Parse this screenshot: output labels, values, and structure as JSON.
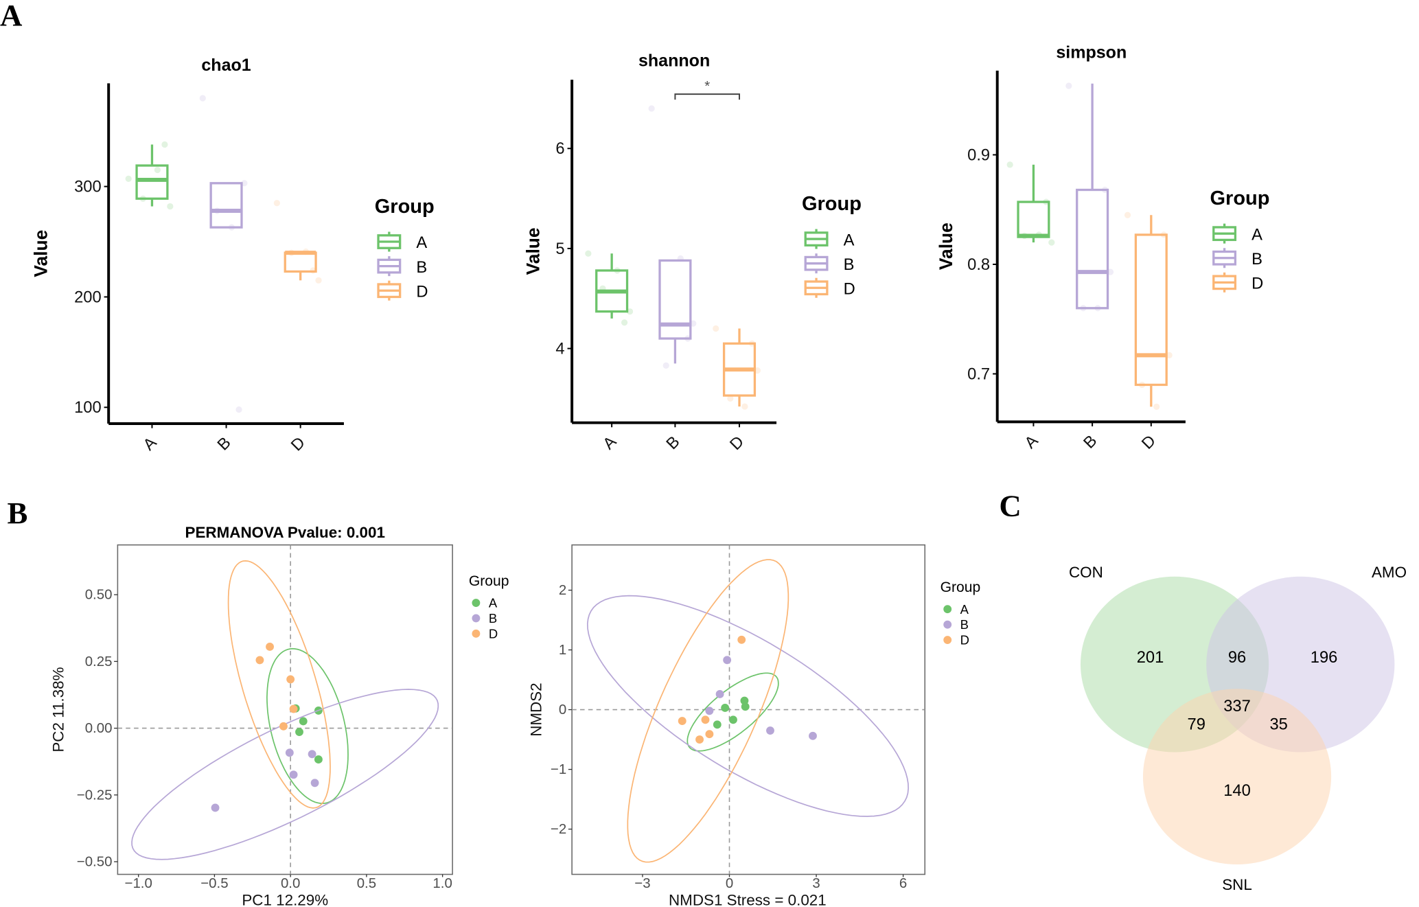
{
  "panel_labels": {
    "a": "A",
    "b": "B",
    "c": "C"
  },
  "colors": {
    "A": "#6cc36a",
    "B": "#b6a6d6",
    "D": "#fbb574"
  },
  "chart_data": [
    {
      "type": "box",
      "id": "chao1",
      "title": "chao1",
      "ylabel": "Value",
      "yticks": [
        100,
        200,
        300
      ],
      "ytick_labels": [
        "100",
        "200",
        "300"
      ],
      "categories": [
        "A",
        "B",
        "D"
      ],
      "legend_title": "Group",
      "legend_placement": "right",
      "groups": [
        {
          "name": "A",
          "whisker_low": 282,
          "q1": 289,
          "median": 306,
          "q3": 319,
          "whisker_high": 338,
          "points": [
            307,
            338,
            282,
            289,
            315
          ]
        },
        {
          "name": "B",
          "whisker_low": 263,
          "q1": 263,
          "median": 278,
          "q3": 303,
          "whisker_high": 303,
          "points": [
            380,
            98,
            303,
            278,
            263
          ]
        },
        {
          "name": "D",
          "whisker_low": 215,
          "q1": 223,
          "median": 240,
          "q3": 240,
          "whisker_high": 240,
          "points": [
            285,
            224,
            215,
            240,
            241
          ]
        }
      ]
    },
    {
      "type": "box",
      "id": "shannon",
      "title": "shannon",
      "ylabel": "Value",
      "yticks": [
        4,
        5,
        6
      ],
      "ytick_labels": [
        "4",
        "5",
        "6"
      ],
      "categories": [
        "A",
        "B",
        "D"
      ],
      "legend_title": "Group",
      "legend_placement": "right",
      "significance": {
        "from": "B",
        "to": "D",
        "label": "*"
      },
      "groups": [
        {
          "name": "A",
          "whisker_low": 4.3,
          "q1": 4.37,
          "median": 4.57,
          "q3": 4.78,
          "whisker_high": 4.95,
          "points": [
            4.95,
            4.26,
            4.37,
            4.6,
            4.78
          ]
        },
        {
          "name": "B",
          "whisker_low": 3.85,
          "q1": 4.1,
          "median": 4.24,
          "q3": 4.88,
          "whisker_high": 4.88,
          "points": [
            6.4,
            4.1,
            4.25,
            3.83,
            4.9
          ]
        },
        {
          "name": "D",
          "whisker_low": 3.42,
          "q1": 3.53,
          "median": 3.79,
          "q3": 4.05,
          "whisker_high": 4.2,
          "points": [
            4.2,
            4.05,
            3.78,
            3.5,
            3.42
          ]
        }
      ]
    },
    {
      "type": "box",
      "id": "simpson",
      "title": "simpson",
      "ylabel": "Value",
      "yticks": [
        0.7,
        0.8,
        0.9
      ],
      "ytick_labels": [
        "0.7",
        "0.8",
        "0.9"
      ],
      "categories": [
        "A",
        "B",
        "D"
      ],
      "legend_title": "Group",
      "legend_placement": "right",
      "groups": [
        {
          "name": "A",
          "whisker_low": 0.82,
          "q1": 0.825,
          "median": 0.826,
          "q3": 0.857,
          "whisker_high": 0.891,
          "points": [
            0.891,
            0.857,
            0.82,
            0.826,
            0.827
          ]
        },
        {
          "name": "B",
          "whisker_low": 0.76,
          "q1": 0.76,
          "median": 0.793,
          "q3": 0.868,
          "whisker_high": 0.965,
          "points": [
            0.963,
            0.868,
            0.793,
            0.76,
            0.76
          ]
        },
        {
          "name": "D",
          "whisker_low": 0.67,
          "q1": 0.69,
          "median": 0.717,
          "q3": 0.827,
          "whisker_high": 0.845,
          "points": [
            0.845,
            0.827,
            0.717,
            0.69,
            0.67
          ]
        }
      ]
    },
    {
      "type": "scatter",
      "id": "pcoa",
      "title": "PERMANOVA Pvalue: 0.001",
      "xlabel": "PC1 12.29%",
      "ylabel": "PC2 11.38%",
      "xticks": [
        -1.0,
        -0.5,
        0.0,
        0.5,
        1.0
      ],
      "xtick_labels": [
        "−1.0",
        "−0.5",
        "0.0",
        "0.5",
        "1.0"
      ],
      "yticks": [
        -0.5,
        -0.25,
        0,
        0.25,
        0.5
      ],
      "ytick_labels": [
        "−0.50",
        "−0.25",
        "0.00",
        "0.25",
        "0.50"
      ],
      "xlim": [
        -1.12,
        1.06
      ],
      "ylim": [
        -0.56,
        0.68
      ],
      "reference_lines": [
        0,
        0
      ],
      "legend_title": "Group",
      "legend_placement": "right",
      "series": [
        {
          "name": "A",
          "points": [
            [
              0.034,
              0.074
            ],
            [
              0.184,
              0.066
            ],
            [
              0.084,
              0.026
            ],
            [
              0.058,
              -0.014
            ],
            [
              0.184,
              -0.117
            ]
          ],
          "ellipse": {
            "center": [
              0.112,
              0.008
            ],
            "u": [
              -0.116,
              0.289
            ],
            "v": [
              0.24,
              0.022
            ]
          }
        },
        {
          "name": "B",
          "points": [
            [
              -0.006,
              -0.092
            ],
            [
              0.142,
              -0.097
            ],
            [
              0.02,
              -0.174
            ],
            [
              0.16,
              -0.205
            ],
            [
              -0.495,
              -0.298
            ]
          ],
          "ellipse": {
            "center": [
              -0.036,
              -0.173
            ],
            "u": [
              0.992,
              0.286
            ],
            "v": [
              0.178,
              -0.14
            ]
          }
        },
        {
          "name": "D",
          "points": [
            [
              -0.136,
              0.305
            ],
            [
              -0.202,
              0.255
            ],
            [
              0.0,
              0.183
            ],
            [
              0.02,
              0.072
            ],
            [
              -0.046,
              0.007
            ]
          ],
          "ellipse": {
            "center": [
              -0.074,
              0.164
            ],
            "u": [
              -0.238,
              0.462
            ],
            "v": [
              0.236,
              0.028
            ]
          }
        }
      ]
    },
    {
      "type": "scatter",
      "id": "nmds",
      "title": "",
      "xlabel": "NMDS1  Stress = 0.021",
      "ylabel": "NMDS2",
      "xticks": [
        -3,
        0,
        3,
        6
      ],
      "xtick_labels": [
        "−3",
        "0",
        "3",
        "6"
      ],
      "yticks": [
        -2,
        -1,
        0,
        1,
        2
      ],
      "ytick_labels": [
        "−2",
        "−1",
        "0",
        "1",
        "2"
      ],
      "xlim": [
        -5.4,
        6.8
      ],
      "ylim": [
        -2.8,
        2.7
      ],
      "reference_lines": [
        0,
        0
      ],
      "legend_title": "Group",
      "legend_placement": "right",
      "series": [
        {
          "name": "A",
          "points": [
            [
              -0.15,
              0.03
            ],
            [
              0.52,
              0.15
            ],
            [
              0.55,
              0.05
            ],
            [
              0.13,
              -0.17
            ],
            [
              -0.42,
              -0.25
            ]
          ],
          "ellipse": {
            "center": [
              0.12,
              -0.04
            ],
            "u": [
              1.46,
              0.61
            ],
            "v": [
              0.58,
              -0.23
            ]
          }
        },
        {
          "name": "B",
          "points": [
            [
              -0.08,
              0.83
            ],
            [
              -0.33,
              0.26
            ],
            [
              -0.69,
              -0.02
            ],
            [
              1.41,
              -0.35
            ],
            [
              2.88,
              -0.44
            ]
          ],
          "ellipse": {
            "center": [
              0.64,
              0.06
            ],
            "u": [
              5.33,
              -1.65
            ],
            "v": [
              -1.51,
              -0.83
            ]
          }
        },
        {
          "name": "D",
          "points": [
            [
              0.42,
              1.17
            ],
            [
              -1.63,
              -0.19
            ],
            [
              -0.83,
              -0.17
            ],
            [
              -0.69,
              -0.41
            ],
            [
              -1.03,
              -0.5
            ]
          ],
          "ellipse": {
            "center": [
              -0.74,
              -0.02
            ],
            "u": [
              2.26,
              2.52
            ],
            "v": [
              1.61,
              -0.25
            ]
          }
        }
      ]
    },
    {
      "type": "venn",
      "id": "venn",
      "sets": [
        {
          "name": "CON",
          "color": "#a9dca6"
        },
        {
          "name": "AMO",
          "color": "#cdc4e6"
        },
        {
          "name": "SNL",
          "color": "#fdd3ad"
        }
      ],
      "regions": [
        {
          "sets": [
            "CON"
          ],
          "value": "201"
        },
        {
          "sets": [
            "CON",
            "AMO"
          ],
          "value": "96"
        },
        {
          "sets": [
            "AMO"
          ],
          "value": "196"
        },
        {
          "sets": [
            "CON",
            "AMO",
            "SNL"
          ],
          "value": "337"
        },
        {
          "sets": [
            "CON",
            "SNL"
          ],
          "value": "79"
        },
        {
          "sets": [
            "AMO",
            "SNL"
          ],
          "value": "35"
        },
        {
          "sets": [
            "SNL"
          ],
          "value": "140"
        }
      ]
    }
  ]
}
